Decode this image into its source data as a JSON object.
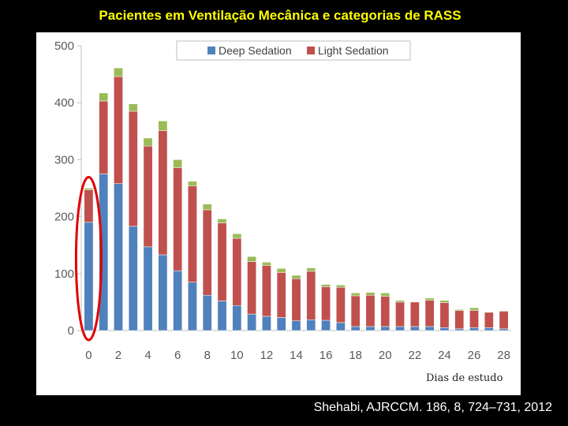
{
  "slide": {
    "title": "Pacientes em Ventilação Mecânica e categorias de RASS",
    "citation": "Shehabi, AJRCCM. 186, 8, 724–731, 2012"
  },
  "colors": {
    "background": "#000000",
    "title": "#ffff00",
    "deep": "#4f81bd",
    "light": "#c0504d",
    "other": "#9bbb59",
    "highlight": "#e00000"
  },
  "chart_data": {
    "type": "bar",
    "stacked": true,
    "xlabel": "Dias de estudo",
    "ylabel": "",
    "ylim": [
      0,
      500
    ],
    "yticks": [
      0,
      100,
      200,
      300,
      400,
      500
    ],
    "xtick_labels": [
      "0",
      "2",
      "4",
      "6",
      "8",
      "10",
      "12",
      "14",
      "16",
      "18",
      "20",
      "22",
      "24",
      "26",
      "28"
    ],
    "grid": false,
    "legend_position": "top",
    "categories": [
      0,
      1,
      2,
      3,
      4,
      5,
      6,
      7,
      8,
      9,
      10,
      11,
      12,
      13,
      14,
      15,
      16,
      17,
      18,
      19,
      20,
      21,
      22,
      23,
      24,
      25,
      26,
      27,
      28
    ],
    "series": [
      {
        "name": "Deep Sedation",
        "color": "#4f81bd",
        "values": [
          190,
          275,
          258,
          183,
          147,
          133,
          105,
          85,
          62,
          52,
          44,
          29,
          25,
          23,
          17,
          19,
          18,
          14,
          7,
          7,
          7,
          7,
          7,
          7,
          5,
          3,
          5,
          5,
          3
        ]
      },
      {
        "name": "Light Sedation",
        "color": "#c0504d",
        "values": [
          57,
          128,
          188,
          202,
          177,
          218,
          181,
          169,
          150,
          137,
          118,
          92,
          89,
          79,
          74,
          85,
          59,
          62,
          54,
          55,
          53,
          43,
          43,
          46,
          44,
          32,
          30,
          27,
          31
        ]
      },
      {
        "name": "",
        "color": "#9bbb59",
        "values": [
          3,
          14,
          15,
          13,
          14,
          17,
          14,
          8,
          10,
          7,
          8,
          9,
          6,
          7,
          6,
          6,
          4,
          4,
          5,
          5,
          6,
          3,
          0,
          4,
          4,
          2,
          5,
          1,
          1
        ]
      }
    ],
    "annotations": [
      {
        "type": "ellipse",
        "target_category": 0,
        "color": "#e00000"
      }
    ]
  }
}
